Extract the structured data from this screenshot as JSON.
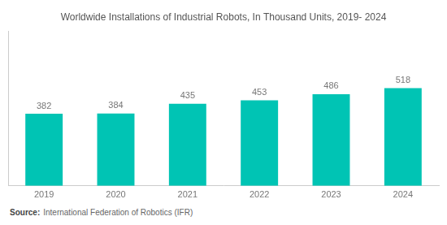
{
  "chart_data": {
    "type": "bar",
    "title": "Worldwide Installations of Industrial Robots, In Thousand Units, 2019- 2024",
    "categories": [
      "2019",
      "2020",
      "2021",
      "2022",
      "2023",
      "2024"
    ],
    "values": [
      382,
      384,
      435,
      453,
      486,
      518
    ],
    "color": "#00C4B4",
    "ylim": [
      0,
      820
    ],
    "grid": false,
    "data_labels": true,
    "tick_labels": "x",
    "annotations": [
      "Source:",
      "International Federation of Robotics (IFR)"
    ]
  }
}
